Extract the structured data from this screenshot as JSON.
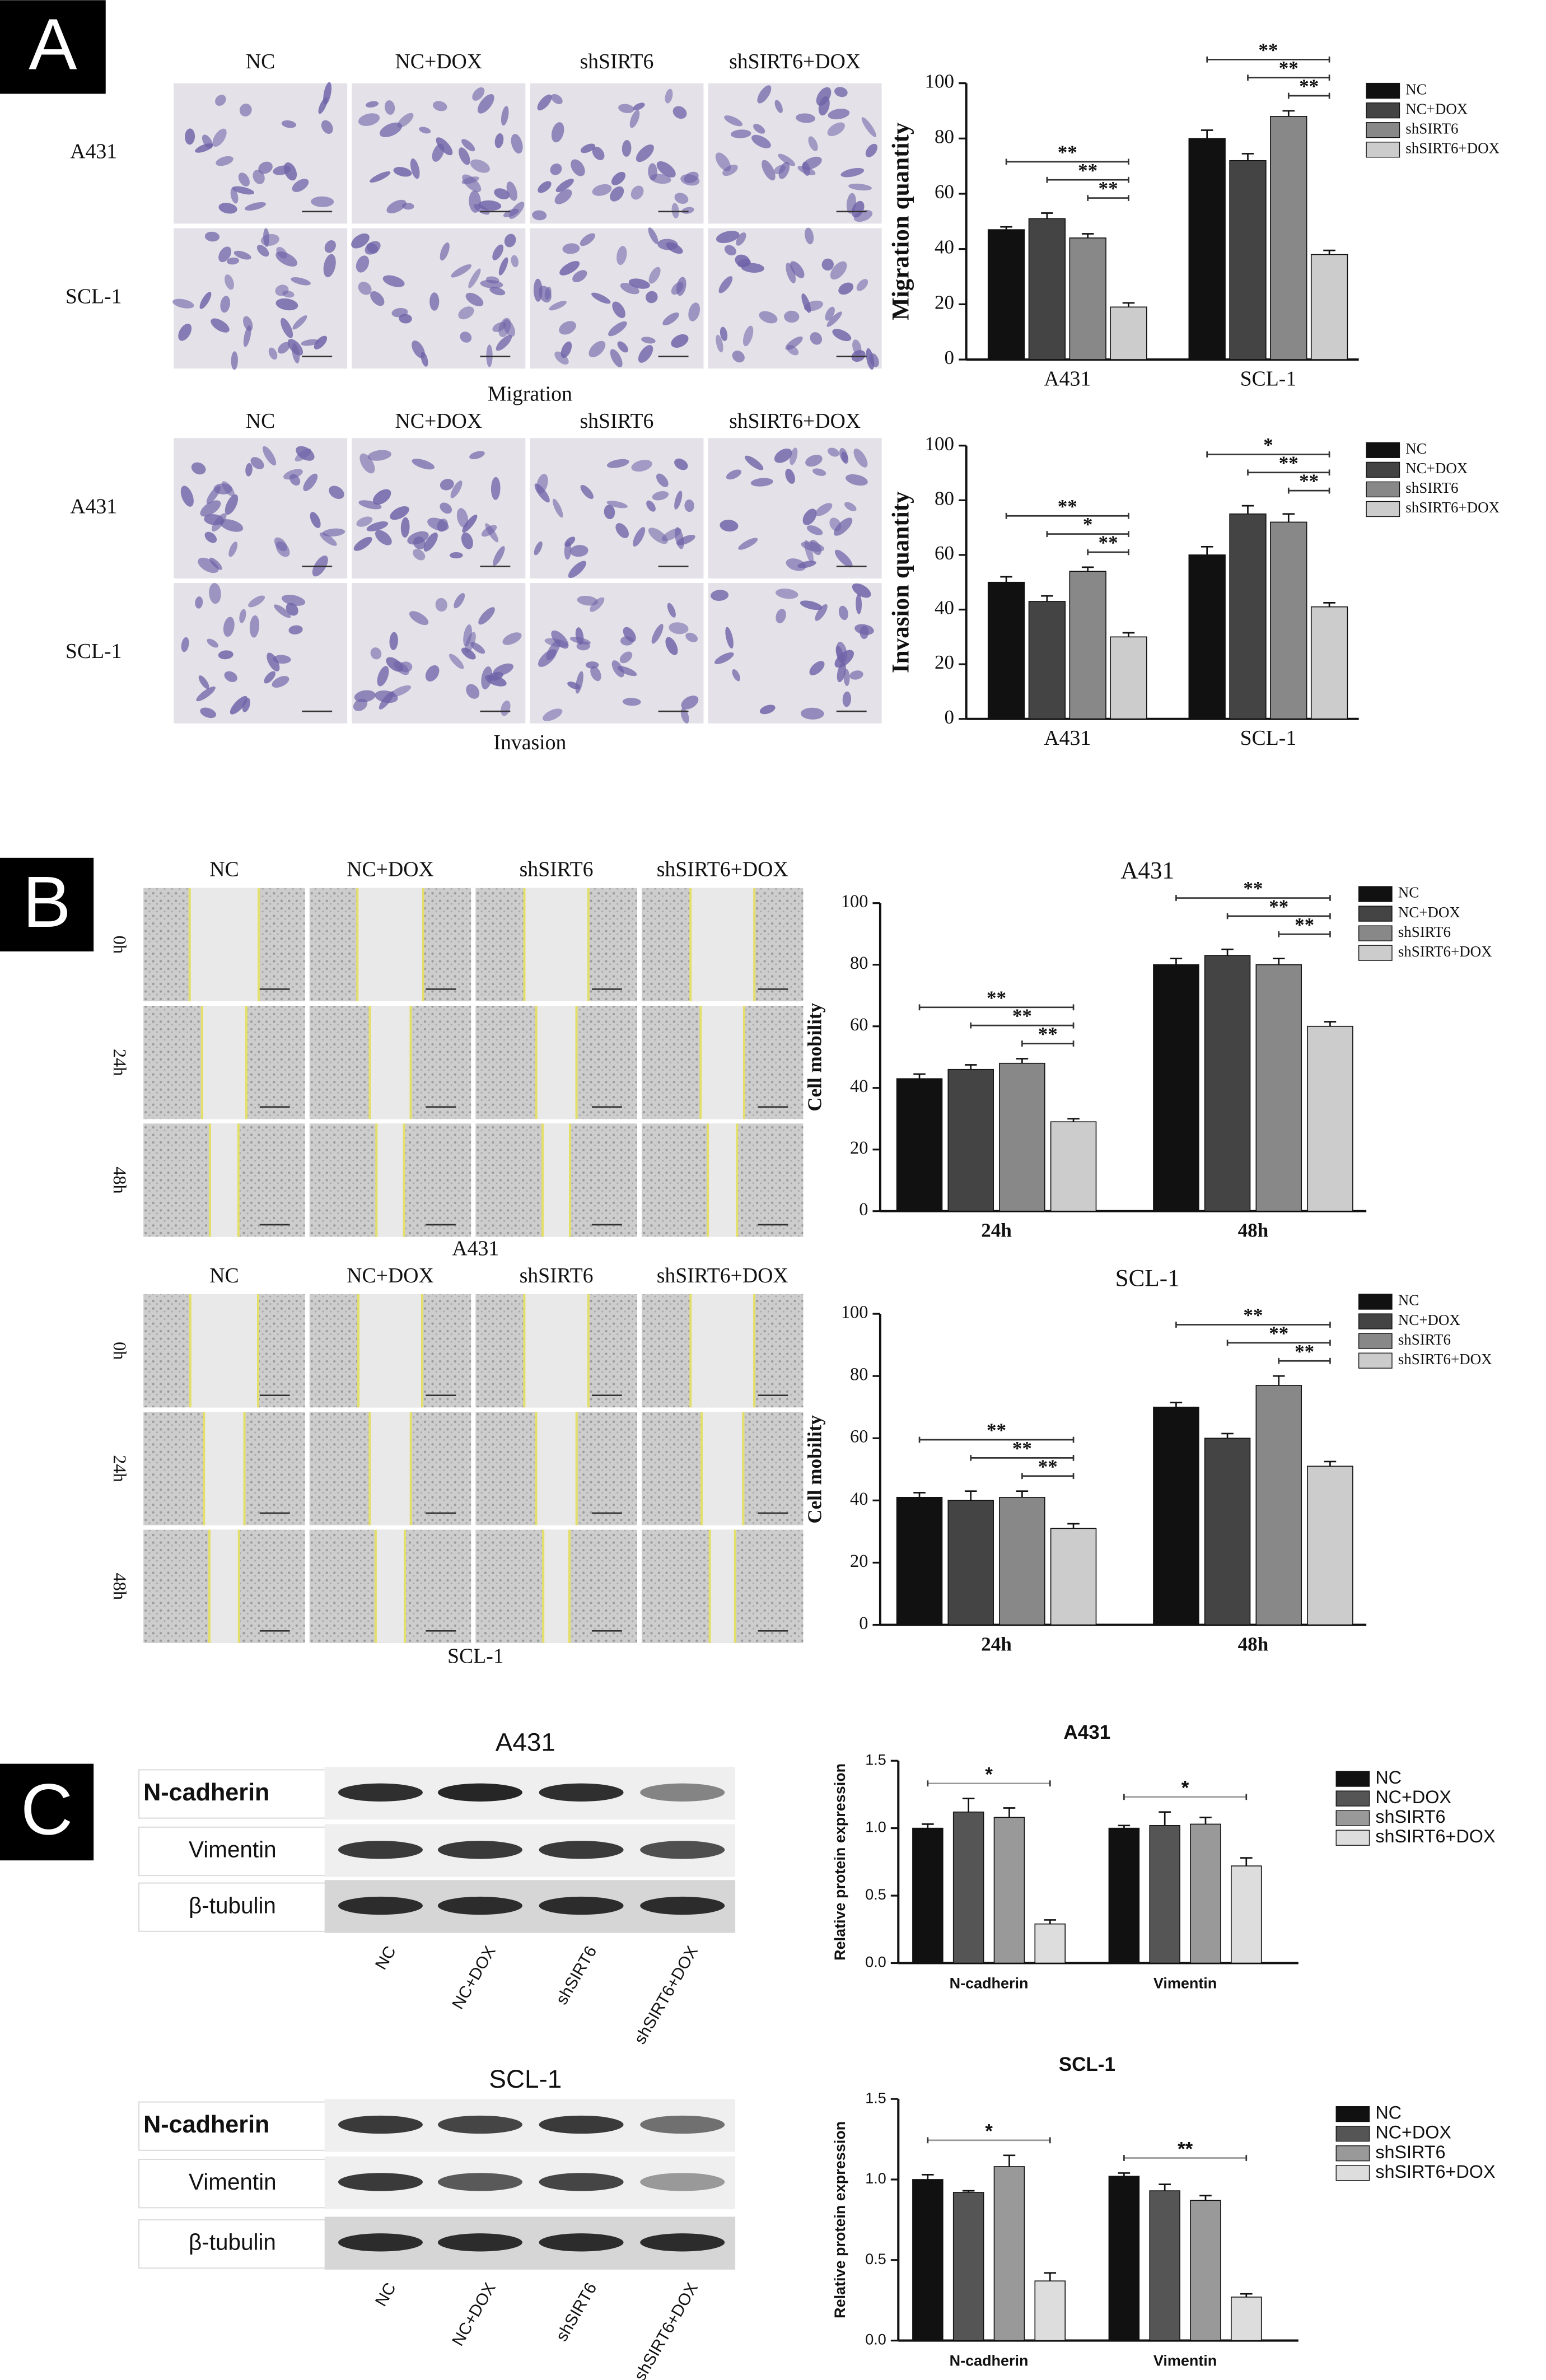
{
  "panels": [
    {
      "label": "A"
    },
    {
      "label": "B"
    },
    {
      "label": "C"
    }
  ],
  "image_grids": [
    {
      "columns": [
        "NC",
        "NC+DOX",
        "shSIRT6",
        "shSIRT6+DOX"
      ],
      "rows": [
        "A431",
        "SCL-1"
      ],
      "caption": "Migration"
    },
    {
      "columns": [
        "NC",
        "NC+DOX",
        "shSIRT6",
        "shSIRT6+DOX"
      ],
      "rows": [
        "A431",
        "SCL-1"
      ],
      "caption": "Invasion"
    },
    {
      "columns": [
        "NC",
        "NC+DOX",
        "shSIRT6",
        "shSIRT6+DOX"
      ],
      "rows": [
        "0h",
        "24h",
        "48h"
      ],
      "caption": "A431"
    },
    {
      "columns": [
        "NC",
        "NC+DOX",
        "shSIRT6",
        "shSIRT6+DOX"
      ],
      "rows": [
        "0h",
        "24h",
        "48h"
      ],
      "caption": "SCL-1"
    }
  ],
  "blots": [
    {
      "title": "A431",
      "proteins": [
        "N-cadherin",
        "Vimentin",
        "β-tubulin"
      ],
      "lanes": [
        "NC",
        "NC+DOX",
        "shSIRT6",
        "shSIRT6+DOX"
      ]
    },
    {
      "title": "SCL-1",
      "proteins": [
        "N-cadherin",
        "Vimentin",
        "β-tubulin"
      ],
      "lanes": [
        "NC",
        "NC+DOX",
        "shSIRT6",
        "shSIRT6+DOX"
      ]
    }
  ],
  "chart_data": [
    {
      "type": "bar",
      "ylabel": "Migration quantity",
      "categories": [
        "A431",
        "SCL-1"
      ],
      "series": [
        {
          "name": "NC",
          "color": "#111111",
          "values": [
            47,
            80
          ],
          "errors": [
            1,
            3
          ]
        },
        {
          "name": "NC+DOX",
          "color": "#444444",
          "values": [
            51,
            72
          ],
          "errors": [
            2,
            2.5
          ]
        },
        {
          "name": "shSIRT6",
          "color": "#888888",
          "values": [
            44,
            88
          ],
          "errors": [
            1.5,
            2
          ]
        },
        {
          "name": "shSIRT6+DOX",
          "color": "#cccccc",
          "values": [
            19,
            38
          ],
          "errors": [
            1.5,
            1.5
          ]
        }
      ],
      "ylim": [
        0,
        100
      ],
      "yticks": [
        0,
        20,
        40,
        60,
        80,
        100
      ],
      "legend": "right",
      "annotations": [
        {
          "label": "**",
          "category": "A431",
          "from": "NC",
          "to": "shSIRT6+DOX"
        },
        {
          "label": "**",
          "category": "A431",
          "from": "NC+DOX",
          "to": "shSIRT6+DOX"
        },
        {
          "label": "**",
          "category": "A431",
          "from": "shSIRT6",
          "to": "shSIRT6+DOX"
        },
        {
          "label": "**",
          "category": "SCL-1",
          "from": "NC",
          "to": "shSIRT6+DOX"
        },
        {
          "label": "**",
          "category": "SCL-1",
          "from": "NC+DOX",
          "to": "shSIRT6+DOX"
        },
        {
          "label": "**",
          "category": "SCL-1",
          "from": "shSIRT6",
          "to": "shSIRT6+DOX"
        }
      ]
    },
    {
      "type": "bar",
      "ylabel": "Invasion quantity",
      "categories": [
        "A431",
        "SCL-1"
      ],
      "series": [
        {
          "name": "NC",
          "color": "#111111",
          "values": [
            50,
            60
          ],
          "errors": [
            2,
            3
          ]
        },
        {
          "name": "NC+DOX",
          "color": "#444444",
          "values": [
            43,
            75
          ],
          "errors": [
            2,
            3
          ]
        },
        {
          "name": "shSIRT6",
          "color": "#888888",
          "values": [
            54,
            72
          ],
          "errors": [
            1.5,
            3
          ]
        },
        {
          "name": "shSIRT6+DOX",
          "color": "#cccccc",
          "values": [
            30,
            41
          ],
          "errors": [
            1.5,
            1.5
          ]
        }
      ],
      "ylim": [
        0,
        100
      ],
      "yticks": [
        0,
        20,
        40,
        60,
        80,
        100
      ],
      "legend": "right",
      "annotations": [
        {
          "label": "**",
          "category": "A431",
          "from": "NC",
          "to": "shSIRT6+DOX"
        },
        {
          "label": "*",
          "category": "A431",
          "from": "NC+DOX",
          "to": "shSIRT6+DOX"
        },
        {
          "label": "**",
          "category": "A431",
          "from": "shSIRT6",
          "to": "shSIRT6+DOX"
        },
        {
          "label": "*",
          "category": "SCL-1",
          "from": "NC",
          "to": "shSIRT6+DOX"
        },
        {
          "label": "**",
          "category": "SCL-1",
          "from": "NC+DOX",
          "to": "shSIRT6+DOX"
        },
        {
          "label": "**",
          "category": "SCL-1",
          "from": "shSIRT6",
          "to": "shSIRT6+DOX"
        }
      ]
    },
    {
      "type": "bar",
      "title": "A431",
      "ylabel": "Cell mobility",
      "categories": [
        "24h",
        "48h"
      ],
      "series": [
        {
          "name": "NC",
          "color": "#111111",
          "values": [
            43,
            80
          ],
          "errors": [
            1.5,
            2
          ]
        },
        {
          "name": "NC+DOX",
          "color": "#444444",
          "values": [
            46,
            83
          ],
          "errors": [
            1.5,
            2
          ]
        },
        {
          "name": "shSIRT6",
          "color": "#888888",
          "values": [
            48,
            80
          ],
          "errors": [
            1.5,
            2
          ]
        },
        {
          "name": "shSIRT6+DOX",
          "color": "#cccccc",
          "values": [
            29,
            60
          ],
          "errors": [
            1,
            1.5
          ]
        }
      ],
      "ylim": [
        0,
        100
      ],
      "yticks": [
        0,
        20,
        40,
        60,
        80,
        100
      ],
      "legend": "right",
      "annotations": [
        {
          "label": "**",
          "category": "24h",
          "from": "NC",
          "to": "shSIRT6+DOX"
        },
        {
          "label": "**",
          "category": "24h",
          "from": "NC+DOX",
          "to": "shSIRT6+DOX"
        },
        {
          "label": "**",
          "category": "24h",
          "from": "shSIRT6",
          "to": "shSIRT6+DOX"
        },
        {
          "label": "**",
          "category": "48h",
          "from": "NC",
          "to": "shSIRT6+DOX"
        },
        {
          "label": "**",
          "category": "48h",
          "from": "NC+DOX",
          "to": "shSIRT6+DOX"
        },
        {
          "label": "**",
          "category": "48h",
          "from": "shSIRT6",
          "to": "shSIRT6+DOX"
        }
      ]
    },
    {
      "type": "bar",
      "title": "SCL-1",
      "ylabel": "Cell mobility",
      "categories": [
        "24h",
        "48h"
      ],
      "series": [
        {
          "name": "NC",
          "color": "#111111",
          "values": [
            41,
            70
          ],
          "errors": [
            1.5,
            1.5
          ]
        },
        {
          "name": "NC+DOX",
          "color": "#444444",
          "values": [
            40,
            60
          ],
          "errors": [
            3,
            1.5
          ]
        },
        {
          "name": "shSIRT6",
          "color": "#888888",
          "values": [
            41,
            77
          ],
          "errors": [
            2,
            3
          ]
        },
        {
          "name": "shSIRT6+DOX",
          "color": "#cccccc",
          "values": [
            31,
            51
          ],
          "errors": [
            1.5,
            1.5
          ]
        }
      ],
      "ylim": [
        0,
        100
      ],
      "yticks": [
        0,
        20,
        40,
        60,
        80,
        100
      ],
      "legend": "right",
      "annotations": [
        {
          "label": "**",
          "category": "24h",
          "from": "NC",
          "to": "shSIRT6+DOX"
        },
        {
          "label": "**",
          "category": "24h",
          "from": "NC+DOX",
          "to": "shSIRT6+DOX"
        },
        {
          "label": "**",
          "category": "24h",
          "from": "shSIRT6",
          "to": "shSIRT6+DOX"
        },
        {
          "label": "**",
          "category": "48h",
          "from": "NC",
          "to": "shSIRT6+DOX"
        },
        {
          "label": "**",
          "category": "48h",
          "from": "NC+DOX",
          "to": "shSIRT6+DOX"
        },
        {
          "label": "**",
          "category": "48h",
          "from": "shSIRT6",
          "to": "shSIRT6+DOX"
        }
      ]
    },
    {
      "type": "bar",
      "title": "A431",
      "ylabel": "Relative protein expression",
      "categories": [
        "N-cadherin",
        "Vimentin"
      ],
      "series": [
        {
          "name": "NC",
          "color": "#111111",
          "values": [
            1.0,
            1.0
          ],
          "errors": [
            0.03,
            0.02
          ]
        },
        {
          "name": "NC+DOX",
          "color": "#555555",
          "values": [
            1.12,
            1.02
          ],
          "errors": [
            0.1,
            0.1
          ]
        },
        {
          "name": "shSIRT6",
          "color": "#999999",
          "values": [
            1.08,
            1.03
          ],
          "errors": [
            0.07,
            0.05
          ]
        },
        {
          "name": "shSIRT6+DOX",
          "color": "#dddddd",
          "values": [
            0.29,
            0.72
          ],
          "errors": [
            0.03,
            0.06
          ]
        }
      ],
      "ylim": [
        0,
        1.5
      ],
      "yticks": [
        {
          "value": 0,
          "label": "0.0"
        },
        {
          "value": 0.5,
          "label": "0.5"
        },
        {
          "value": 1,
          "label": "1.0"
        },
        {
          "value": 1.5,
          "label": "1.5"
        }
      ],
      "legend": "right",
      "annotations": [
        {
          "label": "*",
          "category": "N-cadherin",
          "from": "NC",
          "to": "shSIRT6+DOX"
        },
        {
          "label": "*",
          "category": "Vimentin",
          "from": "NC",
          "to": "shSIRT6+DOX"
        }
      ]
    },
    {
      "type": "bar",
      "title": "SCL-1",
      "ylabel": "Relative protein expression",
      "categories": [
        "N-cadherin",
        "Vimentin"
      ],
      "series": [
        {
          "name": "NC",
          "color": "#111111",
          "values": [
            1.0,
            1.02
          ],
          "errors": [
            0.03,
            0.02
          ]
        },
        {
          "name": "NC+DOX",
          "color": "#555555",
          "values": [
            0.92,
            0.93
          ],
          "errors": [
            0.01,
            0.04
          ]
        },
        {
          "name": "shSIRT6",
          "color": "#999999",
          "values": [
            1.08,
            0.87
          ],
          "errors": [
            0.07,
            0.03
          ]
        },
        {
          "name": "shSIRT6+DOX",
          "color": "#dddddd",
          "values": [
            0.37,
            0.27
          ],
          "errors": [
            0.05,
            0.02
          ]
        }
      ],
      "ylim": [
        0,
        1.5
      ],
      "yticks": [
        {
          "value": 0,
          "label": "0.0"
        },
        {
          "value": 0.5,
          "label": "0.5"
        },
        {
          "value": 1,
          "label": "1.0"
        },
        {
          "value": 1.5,
          "label": "1.5"
        }
      ],
      "legend": "right",
      "annotations": [
        {
          "label": "*",
          "category": "N-cadherin",
          "from": "NC",
          "to": "shSIRT6+DOX"
        },
        {
          "label": "**",
          "category": "Vimentin",
          "from": "NC",
          "to": "shSIRT6+DOX"
        }
      ]
    }
  ]
}
